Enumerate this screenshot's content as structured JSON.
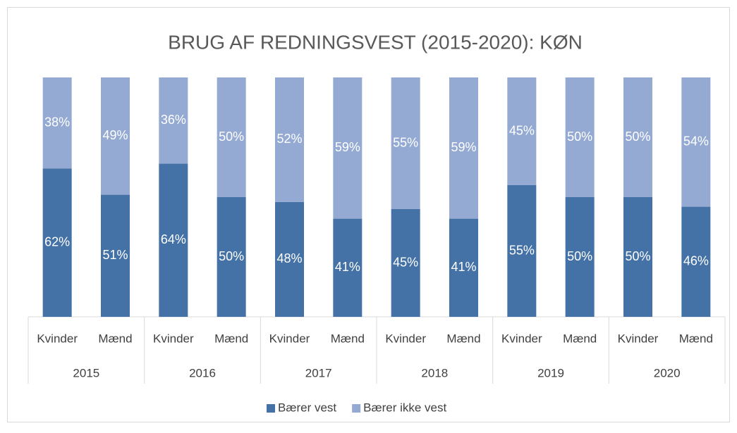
{
  "chart_data": {
    "type": "bar",
    "stacked": "percent",
    "title": "BRUG AF REDNINGSVEST (2015-2020): KØN",
    "categories": [
      "Kvinder",
      "Mænd",
      "Kvinder",
      "Mænd",
      "Kvinder",
      "Mænd",
      "Kvinder",
      "Mænd",
      "Kvinder",
      "Mænd",
      "Kvinder",
      "Mænd"
    ],
    "groups": [
      "2015",
      "2016",
      "2017",
      "2018",
      "2019",
      "2020"
    ],
    "series": [
      {
        "name": "Bærer vest",
        "color": "#4472a6",
        "values": [
          62,
          51,
          64,
          50,
          48,
          41,
          45,
          41,
          55,
          50,
          50,
          46
        ],
        "value_labels": [
          "62%",
          "51%",
          "64%",
          "50%",
          "48%",
          "41%",
          "45%",
          "41%",
          "55%",
          "50%",
          "50%",
          "46%"
        ]
      },
      {
        "name": "Bærer ikke vest",
        "color": "#94aad3",
        "values": [
          38,
          49,
          36,
          50,
          52,
          59,
          55,
          59,
          45,
          50,
          50,
          54
        ],
        "value_labels": [
          "38%",
          "49%",
          "36%",
          "50%",
          "52%",
          "59%",
          "55%",
          "59%",
          "45%",
          "50%",
          "50%",
          "54%"
        ]
      }
    ],
    "legend": "bottom"
  }
}
